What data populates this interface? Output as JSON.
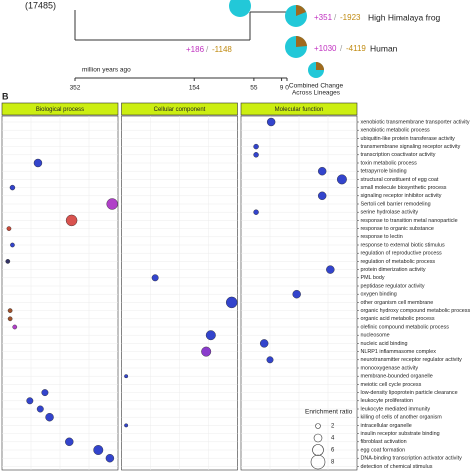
{
  "panel_a": {
    "root_count": "(17485)",
    "branch": {
      "gain": "+186",
      "loss": "-1148"
    },
    "separator": "/",
    "lineages": [
      {
        "name": "High Himalaya frog",
        "gain": "+351",
        "loss": "-1923"
      },
      {
        "name": "Human",
        "gain": "+1030",
        "loss": "-4119"
      }
    ],
    "combined_label": [
      "Combined Change",
      "Across Lineages"
    ],
    "axis_label": "million years ago",
    "xlim": [
      352,
      0
    ],
    "ticks": [
      352,
      154,
      55,
      9,
      0
    ]
  },
  "panel_b": {
    "label": "B"
  },
  "chart_data": {
    "type": "scatter",
    "xlim": [
      0,
      1
    ],
    "categories": [
      "xenobiotic transmembrane transporter activity",
      "xenobiotic metabolic process",
      "ubiquitin-like protein transferase activity",
      "transmembrane signaling receptor activity",
      "transcription coactivator activity",
      "toxin metabolic process",
      "tetrapyrrole binding",
      "structural constituent of egg coat",
      "small molecule biosynthetic process",
      "signaling receptor inhibitor activity",
      "Sertoli cell barrier remodeling",
      "serine hydrolase activity",
      "response to transition metal nanoparticle",
      "response to organic substance",
      "response to lectin",
      "response to external biotic stimulus",
      "regulation of reproductive process",
      "regulation of metabolic process",
      "protein dimerization activity",
      "PML body",
      "peptidase regulator activity",
      "oxygen binding",
      "other organism cell membrane",
      "organic hydroxy compound metabolic process",
      "organic acid metabolic process",
      "olefinic compound metabolic process",
      "nucleosome",
      "nucleic acid binding",
      "NLRP1 inflammasome complex",
      "neurotransmitter receptor regulator activity",
      "monooxygenase activity",
      "membrane-bounded organelle",
      "meiotic cell cycle process",
      "low-density lipoprotein particle clearance",
      "leukocyte proliferation",
      "leukocyte mediated immunity",
      "killing of cells of another organism",
      "intracellular organelle",
      "insulin receptor substrate binding",
      "fibroblast activation",
      "egg coat formation",
      "DNA-binding transcription activator activity",
      "detection of chemical stimulus"
    ],
    "series": [
      {
        "name": "Biological process",
        "values": [
          null,
          null,
          null,
          null,
          null,
          0.31,
          null,
          null,
          0.09,
          null,
          0.95,
          null,
          0.6,
          0.06,
          null,
          0.09,
          null,
          0.05,
          null,
          null,
          null,
          null,
          null,
          0.07,
          0.07,
          0.11,
          null,
          null,
          null,
          null,
          null,
          null,
          null,
          0.37,
          0.24,
          0.33,
          0.41,
          null,
          null,
          0.58,
          0.83,
          0.93,
          null
        ],
        "sizes": [
          null,
          null,
          null,
          null,
          null,
          4,
          null,
          null,
          2,
          null,
          6,
          null,
          6,
          1.5,
          null,
          1.5,
          null,
          1.5,
          null,
          null,
          null,
          null,
          null,
          1.5,
          1.5,
          1.5,
          null,
          null,
          null,
          null,
          null,
          null,
          null,
          3,
          3,
          3,
          4,
          null,
          null,
          4,
          5,
          4,
          null
        ],
        "colors": [
          null,
          null,
          null,
          null,
          null,
          "#3344cc",
          null,
          null,
          "#3344cc",
          null,
          "#b040c8",
          null,
          "#d9534f",
          "#c84a3a",
          null,
          "#3344cc",
          null,
          "#333366",
          null,
          null,
          null,
          null,
          null,
          "#a0522d",
          "#a0522d",
          "#b040c8",
          null,
          null,
          null,
          null,
          null,
          null,
          null,
          "#3344cc",
          "#3344cc",
          "#3344cc",
          "#3344cc",
          null,
          null,
          "#3344cc",
          "#3344cc",
          "#3344cc",
          null
        ]
      },
      {
        "name": "Cellular component",
        "values": [
          null,
          null,
          null,
          null,
          null,
          null,
          null,
          null,
          null,
          null,
          null,
          null,
          null,
          null,
          null,
          null,
          null,
          null,
          null,
          0.29,
          null,
          null,
          0.95,
          null,
          null,
          null,
          0.77,
          null,
          0.73,
          null,
          null,
          0.04,
          null,
          null,
          null,
          null,
          null,
          0.04,
          null,
          null,
          null,
          null,
          null
        ],
        "sizes": [
          null,
          null,
          null,
          null,
          null,
          null,
          null,
          null,
          null,
          null,
          null,
          null,
          null,
          null,
          null,
          null,
          null,
          null,
          null,
          3,
          null,
          null,
          6,
          null,
          null,
          null,
          5,
          null,
          5,
          null,
          null,
          1,
          null,
          null,
          null,
          null,
          null,
          1,
          null,
          null,
          null,
          null,
          null
        ],
        "colors": [
          null,
          null,
          null,
          null,
          null,
          null,
          null,
          null,
          null,
          null,
          null,
          null,
          null,
          null,
          null,
          null,
          null,
          null,
          null,
          "#3344cc",
          null,
          null,
          "#3344cc",
          null,
          null,
          null,
          "#3344cc",
          null,
          "#8a3ccc",
          null,
          null,
          "#3344cc",
          null,
          null,
          null,
          null,
          null,
          "#3344cc",
          null,
          null,
          null,
          null,
          null
        ]
      },
      {
        "name": "Molecular function",
        "values": [
          0.26,
          null,
          null,
          0.13,
          0.13,
          null,
          0.7,
          0.87,
          null,
          0.7,
          null,
          0.13,
          null,
          null,
          null,
          null,
          null,
          null,
          0.77,
          null,
          null,
          0.48,
          null,
          null,
          null,
          null,
          null,
          0.2,
          null,
          0.25,
          null,
          null,
          null,
          null,
          null,
          null,
          null,
          null,
          null,
          null,
          null,
          null,
          null
        ],
        "sizes": [
          4,
          null,
          null,
          2,
          2,
          null,
          4,
          5,
          null,
          4,
          null,
          2,
          null,
          null,
          null,
          null,
          null,
          null,
          4,
          null,
          null,
          4,
          null,
          null,
          null,
          null,
          null,
          4,
          null,
          3,
          null,
          null,
          null,
          null,
          null,
          null,
          null,
          null,
          null,
          null,
          null,
          null,
          null
        ],
        "colors": [
          "#3344cc",
          null,
          null,
          "#3344cc",
          "#3344cc",
          null,
          "#3344cc",
          "#3344cc",
          null,
          "#3344cc",
          null,
          "#3344cc",
          null,
          null,
          null,
          null,
          null,
          null,
          "#3344cc",
          null,
          null,
          "#3344cc",
          null,
          null,
          null,
          null,
          null,
          "#3344cc",
          null,
          "#3344cc",
          null,
          null,
          null,
          null,
          null,
          null,
          null,
          null,
          null,
          null,
          null,
          null,
          null
        ]
      }
    ],
    "legend": {
      "title": "Enrichment ratio",
      "sizes": [
        2,
        4,
        6,
        8
      ]
    }
  }
}
